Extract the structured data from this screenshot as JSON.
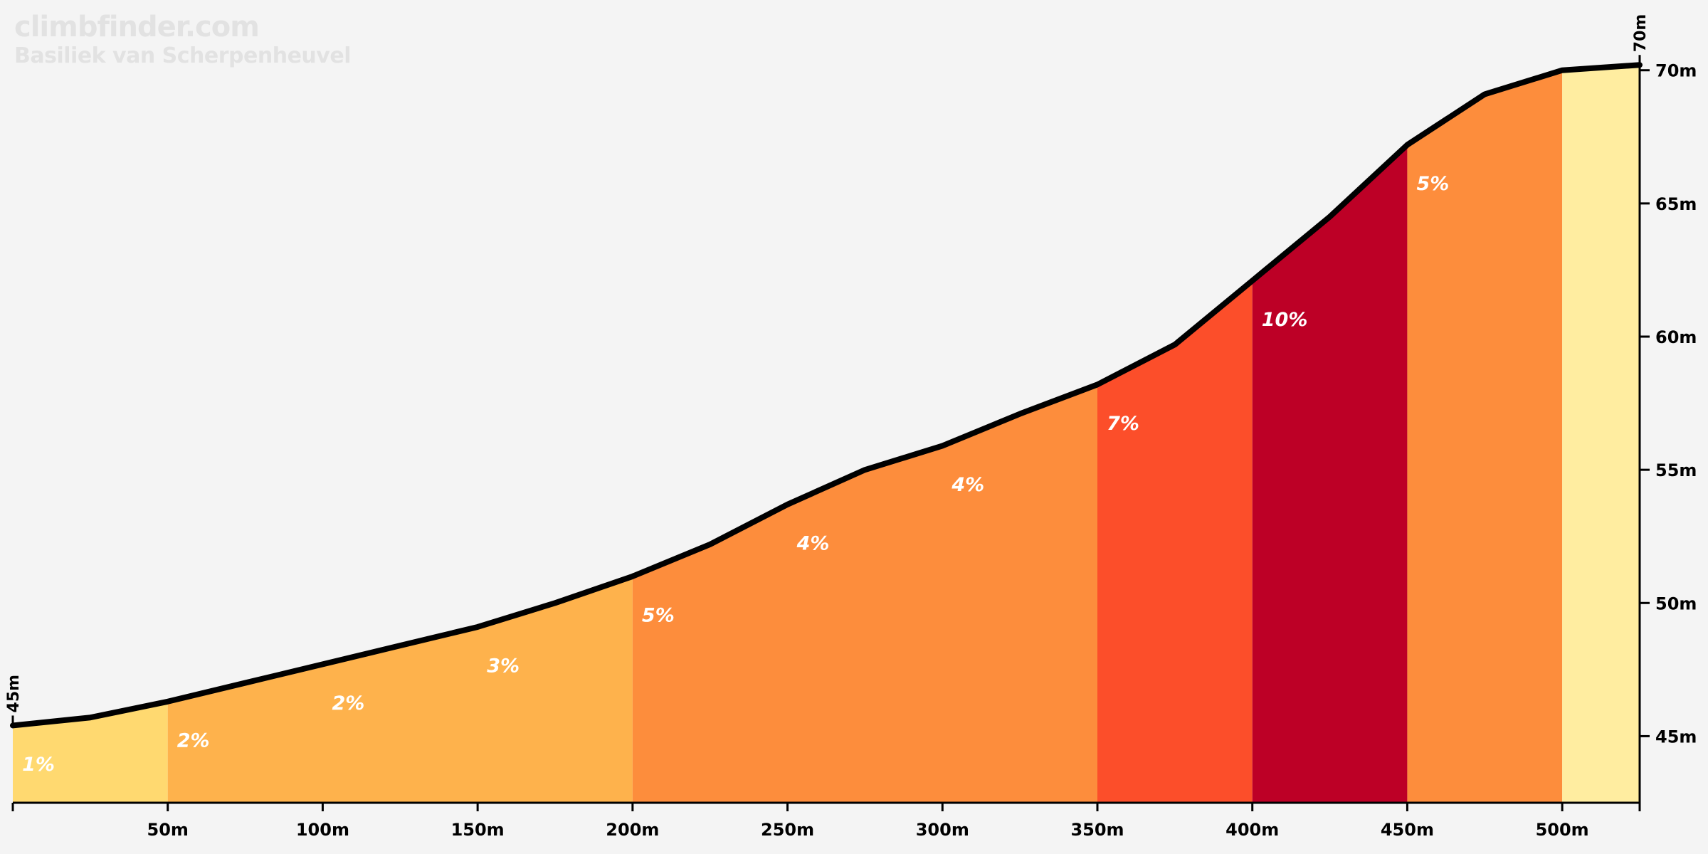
{
  "branding": {
    "site": "climbfinder.com",
    "climb_name": "Basiliek van Scherpenheuvel"
  },
  "chart_data": {
    "type": "area",
    "title": "",
    "xlabel": "",
    "ylabel": "",
    "xlim": [
      0,
      525
    ],
    "ylim": [
      42.5,
      70.5
    ],
    "x_ticks": [
      50,
      100,
      150,
      200,
      250,
      300,
      350,
      400,
      450,
      500
    ],
    "x_tick_labels": [
      "50m",
      "100m",
      "150m",
      "200m",
      "250m",
      "300m",
      "350m",
      "400m",
      "450m",
      "500m"
    ],
    "y_ticks": [
      45,
      50,
      55,
      60,
      65,
      70
    ],
    "y_tick_labels": [
      "45m",
      "50m",
      "55m",
      "60m",
      "65m",
      "70m"
    ],
    "start_label": "45m",
    "end_label": "70m",
    "elevation_profile": {
      "x": [
        0,
        25,
        50,
        75,
        100,
        125,
        150,
        175,
        200,
        225,
        250,
        275,
        300,
        325,
        350,
        375,
        400,
        425,
        450,
        475,
        500,
        525
      ],
      "y": [
        45.4,
        45.7,
        46.3,
        47.0,
        47.7,
        48.4,
        49.1,
        50.0,
        51.0,
        52.2,
        53.7,
        55.0,
        55.9,
        57.1,
        58.2,
        59.7,
        62.1,
        64.5,
        67.2,
        69.1,
        70.0,
        70.2
      ]
    },
    "segments": [
      {
        "start": 0,
        "end": 50,
        "color": "#ffd970",
        "labels": [
          {
            "x": 3,
            "y": 43.7,
            "text": "1%"
          }
        ]
      },
      {
        "start": 50,
        "end": 200,
        "color": "#feb24c",
        "labels": [
          {
            "x": 53,
            "y": 44.6,
            "text": "2%"
          },
          {
            "x": 103,
            "y": 46.0,
            "text": "2%"
          },
          {
            "x": 153,
            "y": 47.4,
            "text": "3%"
          }
        ]
      },
      {
        "start": 200,
        "end": 350,
        "color": "#fd8d3c",
        "labels": [
          {
            "x": 203,
            "y": 49.3,
            "text": "5%"
          },
          {
            "x": 253,
            "y": 52.0,
            "text": "4%"
          },
          {
            "x": 303,
            "y": 54.2,
            "text": "4%"
          }
        ]
      },
      {
        "start": 350,
        "end": 400,
        "color": "#fc4e2a",
        "labels": [
          {
            "x": 353,
            "y": 56.5,
            "text": "7%"
          }
        ]
      },
      {
        "start": 400,
        "end": 450,
        "color": "#bd0026",
        "labels": [
          {
            "x": 403,
            "y": 60.4,
            "text": "10%"
          }
        ]
      },
      {
        "start": 450,
        "end": 500,
        "color": "#fd8d3c",
        "labels": [
          {
            "x": 453,
            "y": 65.5,
            "text": "5%"
          }
        ]
      },
      {
        "start": 500,
        "end": 525,
        "color": "#ffeda0",
        "labels": []
      }
    ]
  }
}
